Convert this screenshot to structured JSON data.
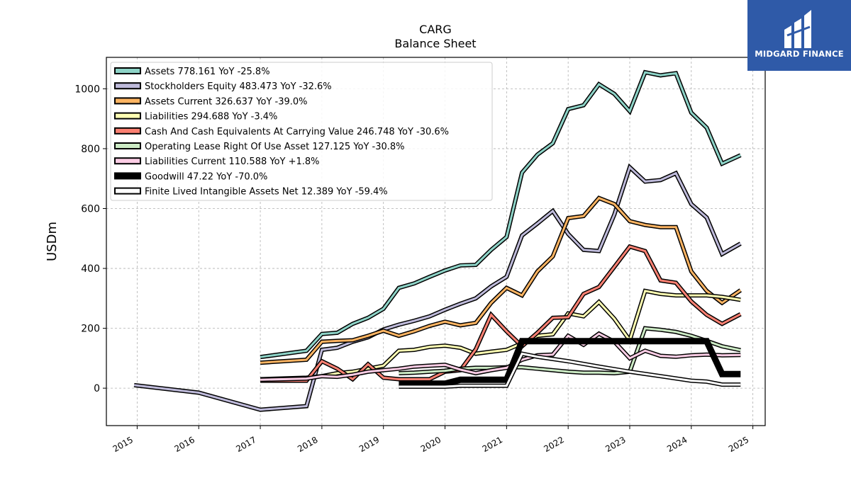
{
  "title": "CARG",
  "subtitle": "Balance  Sheet",
  "logo_text": "MIDGARD FINANCE",
  "colors": {
    "logo_bg": "#2f5aa8"
  },
  "chart_data": {
    "type": "line",
    "ylabel": "USDm",
    "xlabel": "",
    "xlim": [
      2014.5,
      2025.2
    ],
    "ylim": [
      -125,
      1105
    ],
    "xticks": [
      2015,
      2016,
      2017,
      2018,
      2019,
      2020,
      2021,
      2022,
      2023,
      2024,
      2025
    ],
    "yticks": [
      0,
      200,
      400,
      600,
      800,
      1000
    ],
    "grid": true,
    "legend_position": "top-left",
    "series": [
      {
        "name": "Assets",
        "legend": "Assets  778.161 YoY -25.8%",
        "color": "#8dd3c7",
        "width": 3,
        "points": [
          [
            2017.0,
            104
          ],
          [
            2017.75,
            125
          ],
          [
            2018.0,
            181
          ],
          [
            2018.25,
            185
          ],
          [
            2018.5,
            215
          ],
          [
            2018.75,
            235
          ],
          [
            2019.0,
            265
          ],
          [
            2019.25,
            335
          ],
          [
            2019.5,
            350
          ],
          [
            2019.75,
            372
          ],
          [
            2020.0,
            393
          ],
          [
            2020.25,
            410
          ],
          [
            2020.5,
            412
          ],
          [
            2020.75,
            462
          ],
          [
            2021.0,
            505
          ],
          [
            2021.25,
            720
          ],
          [
            2021.5,
            780
          ],
          [
            2021.75,
            818
          ],
          [
            2022.0,
            932
          ],
          [
            2022.25,
            945
          ],
          [
            2022.5,
            1015
          ],
          [
            2022.75,
            983
          ],
          [
            2023.0,
            925
          ],
          [
            2023.25,
            1055
          ],
          [
            2023.5,
            1045
          ],
          [
            2023.75,
            1052
          ],
          [
            2024.0,
            920
          ],
          [
            2024.25,
            870
          ],
          [
            2024.5,
            750
          ],
          [
            2024.8,
            778
          ]
        ]
      },
      {
        "name": "Stockholders Equity",
        "legend": "Stockholders Equity  483.473 YoY -32.6%",
        "color": "#bebada",
        "width": 3,
        "points": [
          [
            2014.95,
            10
          ],
          [
            2016.0,
            -15
          ],
          [
            2017.0,
            -72
          ],
          [
            2017.75,
            -60
          ],
          [
            2018.0,
            128
          ],
          [
            2018.25,
            135
          ],
          [
            2018.5,
            155
          ],
          [
            2018.75,
            170
          ],
          [
            2019.0,
            196
          ],
          [
            2019.25,
            212
          ],
          [
            2019.5,
            225
          ],
          [
            2019.75,
            240
          ],
          [
            2020.0,
            262
          ],
          [
            2020.25,
            282
          ],
          [
            2020.5,
            300
          ],
          [
            2020.75,
            340
          ],
          [
            2021.0,
            372
          ],
          [
            2021.25,
            510
          ],
          [
            2021.5,
            550
          ],
          [
            2021.75,
            592
          ],
          [
            2022.0,
            515
          ],
          [
            2022.25,
            462
          ],
          [
            2022.5,
            458
          ],
          [
            2022.75,
            580
          ],
          [
            2023.0,
            738
          ],
          [
            2023.25,
            690
          ],
          [
            2023.5,
            695
          ],
          [
            2023.75,
            718
          ],
          [
            2024.0,
            615
          ],
          [
            2024.25,
            570
          ],
          [
            2024.5,
            448
          ],
          [
            2024.8,
            483
          ]
        ]
      },
      {
        "name": "Assets Current",
        "legend": "Assets Current  326.637 YoY -39.0%",
        "color": "#fdb462",
        "width": 3,
        "points": [
          [
            2017.0,
            85
          ],
          [
            2017.75,
            95
          ],
          [
            2018.0,
            155
          ],
          [
            2018.25,
            158
          ],
          [
            2018.5,
            160
          ],
          [
            2018.75,
            175
          ],
          [
            2019.0,
            192
          ],
          [
            2019.25,
            175
          ],
          [
            2019.5,
            190
          ],
          [
            2019.75,
            208
          ],
          [
            2020.0,
            222
          ],
          [
            2020.25,
            210
          ],
          [
            2020.5,
            218
          ],
          [
            2020.75,
            285
          ],
          [
            2021.0,
            335
          ],
          [
            2021.25,
            310
          ],
          [
            2021.5,
            390
          ],
          [
            2021.75,
            440
          ],
          [
            2022.0,
            568
          ],
          [
            2022.25,
            575
          ],
          [
            2022.5,
            635
          ],
          [
            2022.75,
            615
          ],
          [
            2023.0,
            558
          ],
          [
            2023.25,
            545
          ],
          [
            2023.5,
            538
          ],
          [
            2023.75,
            538
          ],
          [
            2024.0,
            390
          ],
          [
            2024.25,
            325
          ],
          [
            2024.5,
            285
          ],
          [
            2024.8,
            327
          ]
        ]
      },
      {
        "name": "Liabilities",
        "legend": "Liabilities  294.688 YoY -3.4%",
        "color": "#ffffb3",
        "width": 3,
        "points": [
          [
            2017.0,
            30
          ],
          [
            2017.75,
            35
          ],
          [
            2018.0,
            40
          ],
          [
            2018.25,
            50
          ],
          [
            2018.5,
            55
          ],
          [
            2018.75,
            65
          ],
          [
            2019.0,
            75
          ],
          [
            2019.25,
            125
          ],
          [
            2019.5,
            128
          ],
          [
            2019.75,
            138
          ],
          [
            2020.0,
            142
          ],
          [
            2020.25,
            135
          ],
          [
            2020.5,
            115
          ],
          [
            2020.75,
            122
          ],
          [
            2021.0,
            128
          ],
          [
            2021.25,
            150
          ],
          [
            2021.5,
            175
          ],
          [
            2021.75,
            180
          ],
          [
            2022.0,
            250
          ],
          [
            2022.25,
            240
          ],
          [
            2022.5,
            288
          ],
          [
            2022.75,
            232
          ],
          [
            2023.0,
            160
          ],
          [
            2023.25,
            325
          ],
          [
            2023.5,
            315
          ],
          [
            2023.75,
            310
          ],
          [
            2024.0,
            310
          ],
          [
            2024.25,
            310
          ],
          [
            2024.5,
            305
          ],
          [
            2024.8,
            295
          ]
        ]
      },
      {
        "name": "Cash And Cash Equivalents At Carrying Value",
        "legend": "Cash And Cash Equivalents At Carrying Value  246.748 YoY -30.6%",
        "color": "#fb8072",
        "width": 3,
        "points": [
          [
            2017.0,
            25
          ],
          [
            2017.75,
            25
          ],
          [
            2018.0,
            90
          ],
          [
            2018.25,
            65
          ],
          [
            2018.5,
            30
          ],
          [
            2018.75,
            80
          ],
          [
            2019.0,
            35
          ],
          [
            2019.25,
            30
          ],
          [
            2019.5,
            30
          ],
          [
            2019.75,
            30
          ],
          [
            2020.0,
            55
          ],
          [
            2020.25,
            60
          ],
          [
            2020.5,
            130
          ],
          [
            2020.75,
            245
          ],
          [
            2021.0,
            190
          ],
          [
            2021.25,
            140
          ],
          [
            2021.5,
            185
          ],
          [
            2021.75,
            235
          ],
          [
            2022.0,
            237
          ],
          [
            2022.25,
            315
          ],
          [
            2022.5,
            338
          ],
          [
            2022.75,
            405
          ],
          [
            2023.0,
            473
          ],
          [
            2023.25,
            458
          ],
          [
            2023.5,
            360
          ],
          [
            2023.75,
            352
          ],
          [
            2024.0,
            290
          ],
          [
            2024.25,
            245
          ],
          [
            2024.5,
            215
          ],
          [
            2024.8,
            247
          ]
        ]
      },
      {
        "name": "Operating Lease Right Of Use Asset",
        "legend": "Operating Lease Right Of Use Asset  127.125 YoY -30.8%",
        "color": "#ccebc5",
        "width": 3,
        "points": [
          [
            2019.25,
            50
          ],
          [
            2019.5,
            52
          ],
          [
            2019.75,
            55
          ],
          [
            2020.0,
            58
          ],
          [
            2020.25,
            65
          ],
          [
            2020.5,
            68
          ],
          [
            2020.75,
            68
          ],
          [
            2021.0,
            70
          ],
          [
            2021.25,
            70
          ],
          [
            2021.5,
            65
          ],
          [
            2021.75,
            60
          ],
          [
            2022.0,
            55
          ],
          [
            2022.25,
            52
          ],
          [
            2022.5,
            52
          ],
          [
            2022.75,
            50
          ],
          [
            2023.0,
            55
          ],
          [
            2023.25,
            200
          ],
          [
            2023.5,
            195
          ],
          [
            2023.75,
            188
          ],
          [
            2024.0,
            175
          ],
          [
            2024.25,
            158
          ],
          [
            2024.5,
            140
          ],
          [
            2024.8,
            127
          ]
        ]
      },
      {
        "name": "Liabilities Current",
        "legend": "Liabilities Current  110.588 YoY +1.8%",
        "color": "#fccde5",
        "width": 3,
        "points": [
          [
            2017.0,
            28
          ],
          [
            2017.75,
            32
          ],
          [
            2018.0,
            40
          ],
          [
            2018.25,
            38
          ],
          [
            2018.5,
            45
          ],
          [
            2018.75,
            55
          ],
          [
            2019.0,
            60
          ],
          [
            2019.25,
            65
          ],
          [
            2019.5,
            72
          ],
          [
            2019.75,
            75
          ],
          [
            2020.0,
            78
          ],
          [
            2020.25,
            62
          ],
          [
            2020.5,
            50
          ],
          [
            2020.75,
            60
          ],
          [
            2021.0,
            68
          ],
          [
            2021.25,
            95
          ],
          [
            2021.5,
            110
          ],
          [
            2021.75,
            112
          ],
          [
            2022.0,
            175
          ],
          [
            2022.25,
            145
          ],
          [
            2022.5,
            182
          ],
          [
            2022.75,
            155
          ],
          [
            2023.0,
            100
          ],
          [
            2023.25,
            125
          ],
          [
            2023.5,
            108
          ],
          [
            2023.75,
            105
          ],
          [
            2024.0,
            110
          ],
          [
            2024.25,
            112
          ],
          [
            2024.5,
            110
          ],
          [
            2024.8,
            111
          ]
        ]
      },
      {
        "name": "Goodwill",
        "legend": "Goodwill  47.22 YoY -70.0%",
        "color": "#000000",
        "width": 6,
        "points": [
          [
            2019.25,
            15
          ],
          [
            2019.5,
            15
          ],
          [
            2019.75,
            15
          ],
          [
            2020.0,
            15
          ],
          [
            2020.25,
            28
          ],
          [
            2020.5,
            28
          ],
          [
            2020.75,
            28
          ],
          [
            2021.0,
            28
          ],
          [
            2021.25,
            157
          ],
          [
            2021.5,
            157
          ],
          [
            2021.75,
            157
          ],
          [
            2022.0,
            157
          ],
          [
            2022.25,
            157
          ],
          [
            2022.5,
            157
          ],
          [
            2022.75,
            157
          ],
          [
            2023.0,
            157
          ],
          [
            2023.25,
            157
          ],
          [
            2023.5,
            157
          ],
          [
            2023.75,
            157
          ],
          [
            2024.0,
            157
          ],
          [
            2024.25,
            157
          ],
          [
            2024.5,
            47
          ],
          [
            2024.8,
            47
          ]
        ]
      },
      {
        "name": "Finite Lived Intangible Assets Net",
        "legend": "Finite Lived Intangible Assets Net  12.389 YoY -59.4%",
        "color": "#ffffff",
        "width": 3,
        "points": [
          [
            2019.25,
            5
          ],
          [
            2020.0,
            5
          ],
          [
            2020.25,
            8
          ],
          [
            2020.75,
            8
          ],
          [
            2021.0,
            8
          ],
          [
            2021.25,
            115
          ],
          [
            2021.5,
            105
          ],
          [
            2022.0,
            90
          ],
          [
            2022.5,
            72
          ],
          [
            2023.0,
            55
          ],
          [
            2023.5,
            40
          ],
          [
            2024.0,
            25
          ],
          [
            2024.25,
            22
          ],
          [
            2024.5,
            12
          ],
          [
            2024.8,
            12
          ]
        ]
      }
    ]
  }
}
